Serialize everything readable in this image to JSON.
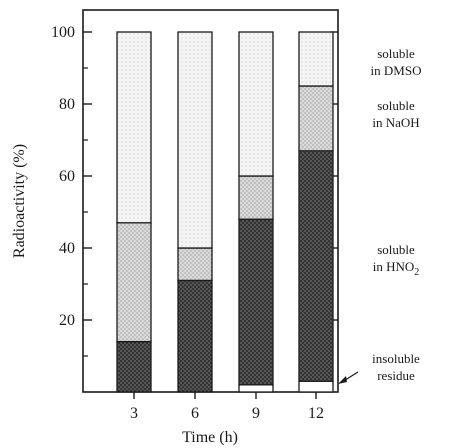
{
  "chart_data": {
    "type": "bar",
    "stacked": true,
    "xlabel": "Time (h)",
    "ylabel": "Radioactivity (%)",
    "ylim": [
      0,
      100
    ],
    "yticks": [
      20,
      40,
      60,
      80,
      100
    ],
    "categories": [
      "3",
      "6",
      "9",
      "12"
    ],
    "series": [
      {
        "name": "insoluble residue",
        "values": [
          0,
          0,
          2,
          3
        ]
      },
      {
        "name": "soluble in HNO2",
        "values": [
          14,
          31,
          46,
          64
        ]
      },
      {
        "name": "soluble in NaOH",
        "values": [
          33,
          9,
          12,
          18
        ]
      },
      {
        "name": "soluble in DMSO",
        "values": [
          53,
          60,
          40,
          15
        ]
      }
    ],
    "annotations": {
      "dmso": [
        "soluble",
        "in DMSO"
      ],
      "naoh": [
        "soluble",
        "in NaOH"
      ],
      "hno2": [
        "soluble",
        "in HNO",
        "2"
      ],
      "residue": [
        "insoluble",
        "residue"
      ]
    },
    "colors": {
      "axis": "#1a1a1a",
      "insoluble": "#ffffff",
      "hno2": "#3a3a3a",
      "naoh": "#c8c8c8",
      "dmso": "#ececec"
    }
  }
}
